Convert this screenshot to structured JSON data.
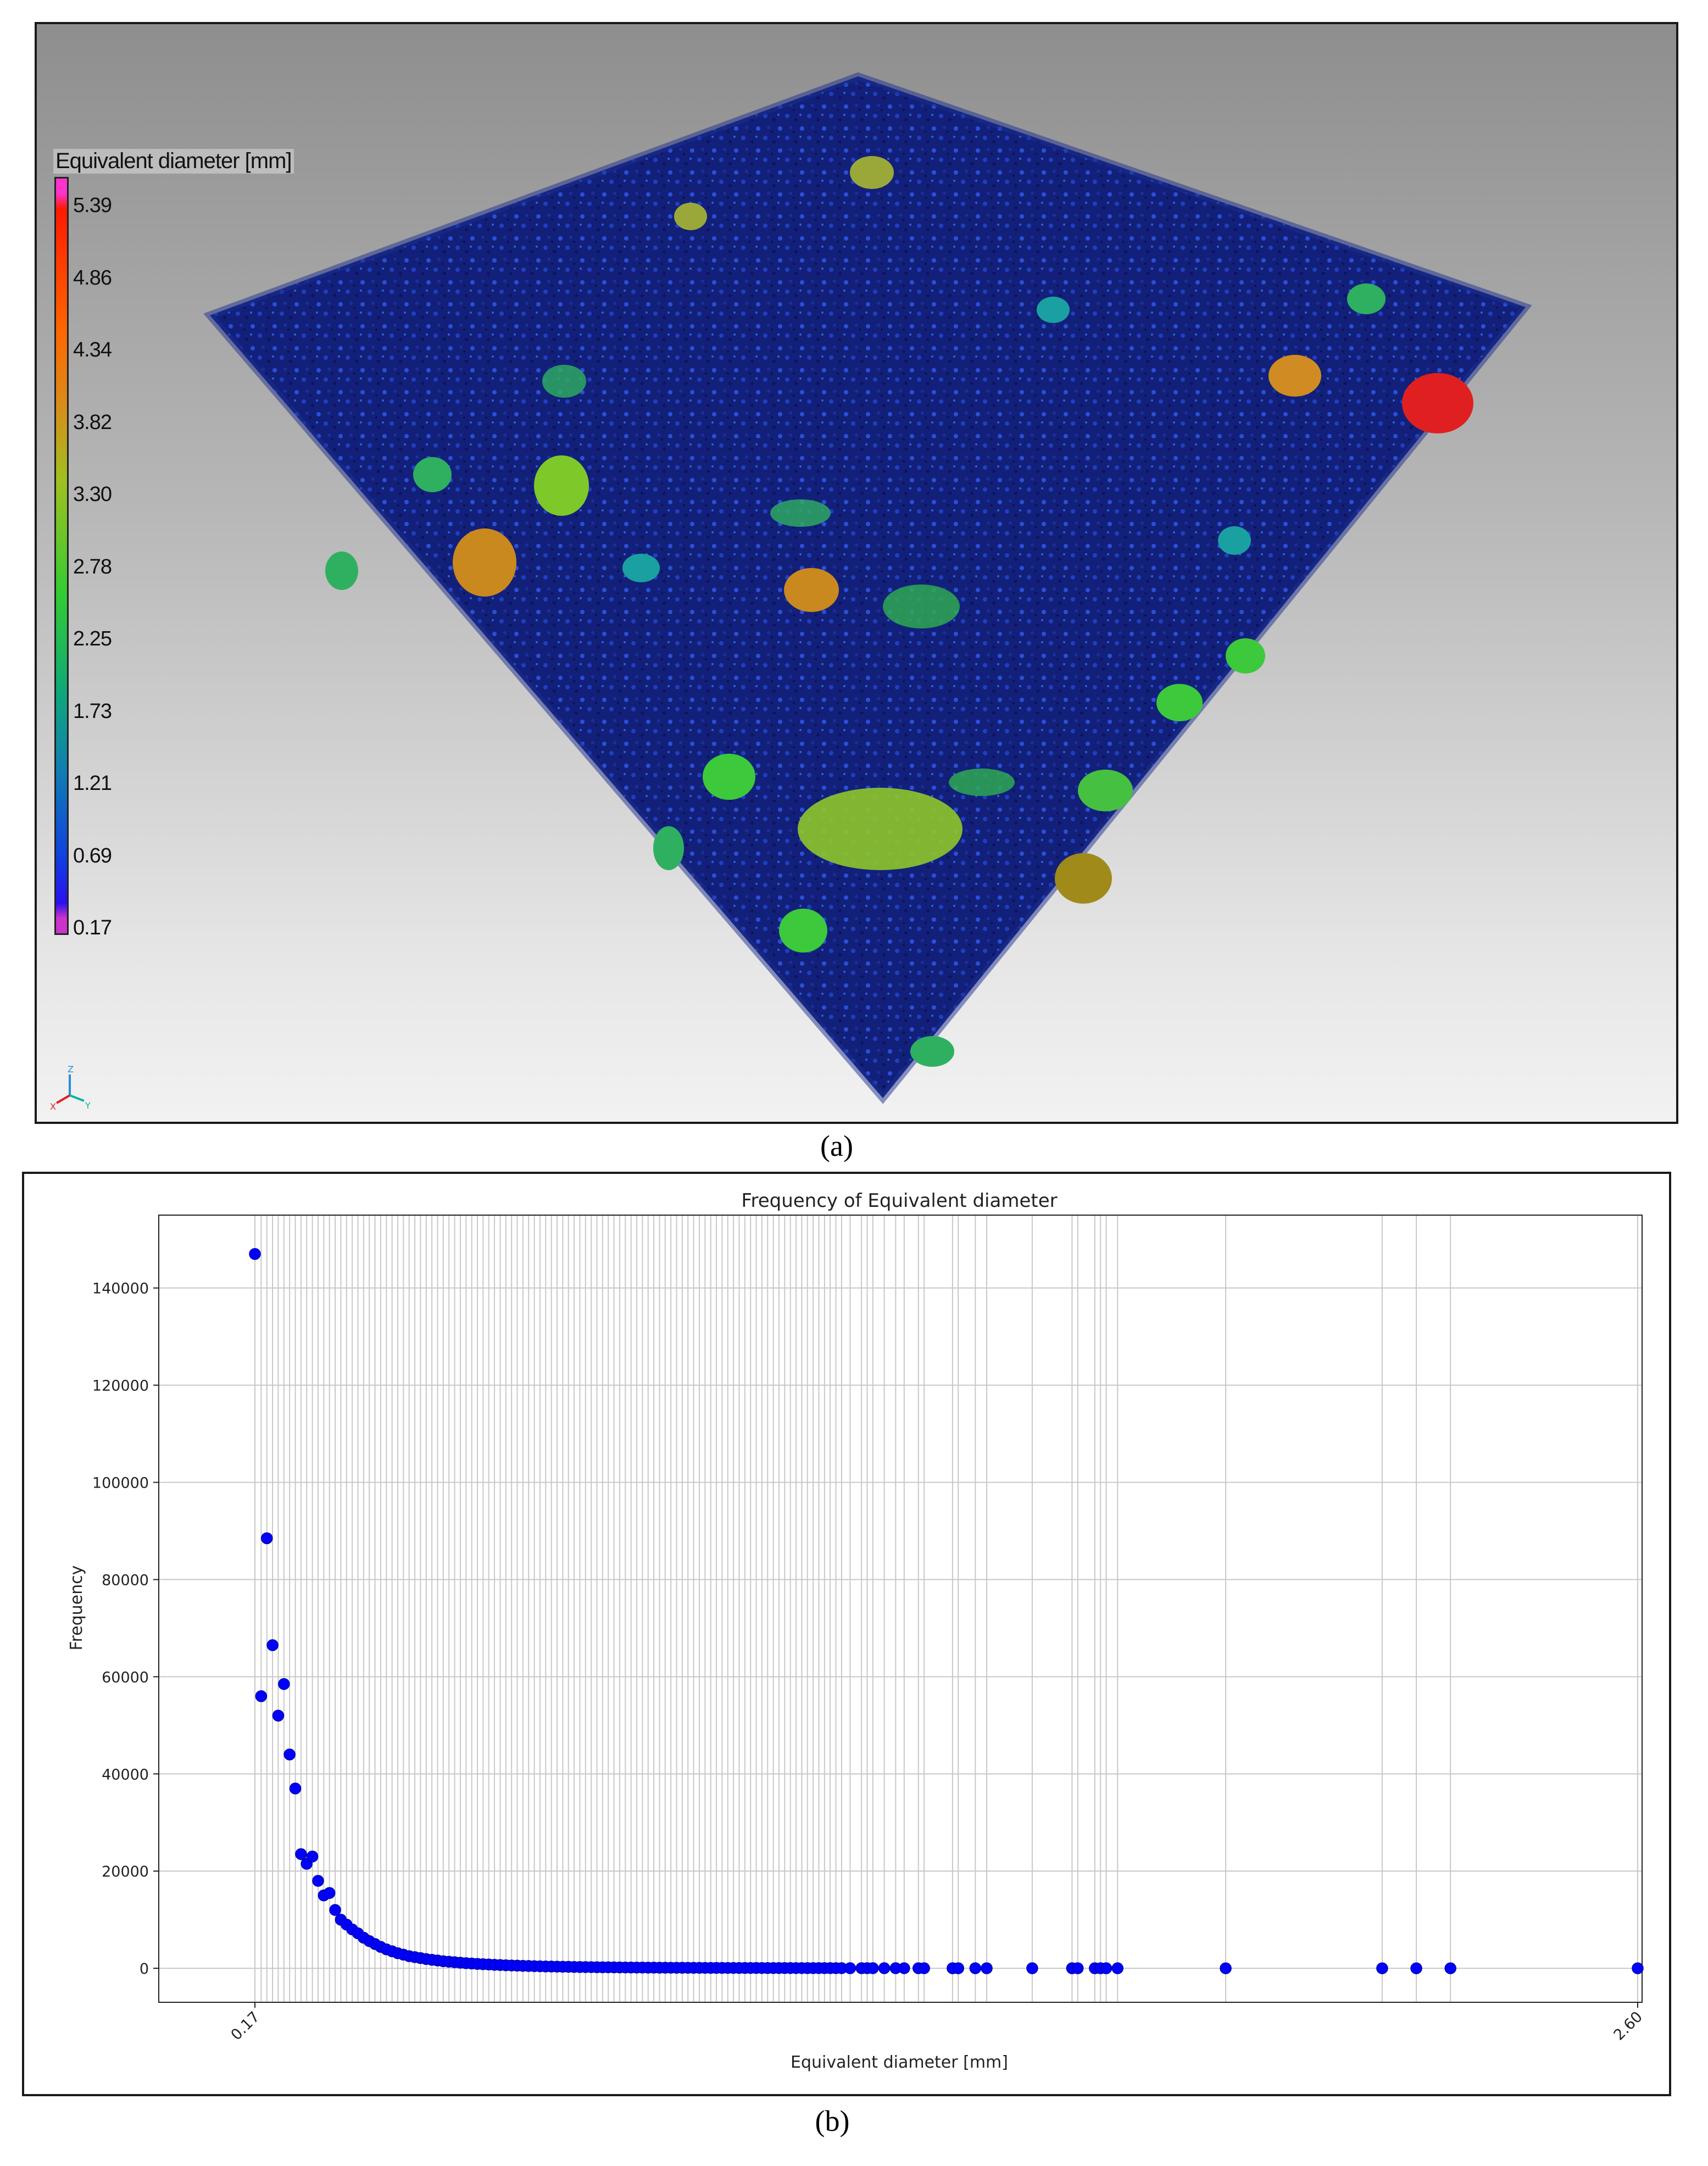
{
  "panel_a": {
    "caption": "(a)",
    "colorbar": {
      "title": "Equivalent diameter [mm]",
      "labels": [
        "5.39",
        "4.86",
        "4.34",
        "3.82",
        "3.30",
        "2.78",
        "2.25",
        "1.73",
        "1.21",
        "0.69",
        "0.17"
      ]
    },
    "triad_labels": {
      "z": "Z",
      "x": "X",
      "y": "Y"
    }
  },
  "panel_b": {
    "caption": "(b)"
  },
  "chart_data": {
    "type": "scatter",
    "title": "Frequency of Equivalent diameter",
    "xlabel": "Equivalent diameter [mm]",
    "ylabel": "Frequency",
    "x_tick_labels": [
      "0.17",
      "2.60"
    ],
    "x_range": [
      0.17,
      2.6
    ],
    "ylim": [
      -7000,
      155000
    ],
    "y_ticks": [
      0,
      20000,
      40000,
      60000,
      80000,
      100000,
      120000,
      140000
    ],
    "grid": true,
    "marker_color": "#0000ff",
    "series": [
      {
        "x": [
          0.17,
          0.181,
          0.191,
          0.201,
          0.211,
          0.221,
          0.231,
          0.241,
          0.251,
          0.261,
          0.271,
          0.281,
          0.291,
          0.301,
          0.311,
          0.321,
          0.331,
          0.341,
          0.351,
          0.361,
          0.371,
          0.381,
          0.391,
          0.401,
          0.411,
          0.421,
          0.431,
          0.441,
          0.451,
          0.461,
          0.471,
          0.481,
          0.491,
          0.501,
          0.511,
          0.521,
          0.531,
          0.541,
          0.551,
          0.561,
          0.571,
          0.581,
          0.591,
          0.601,
          0.611,
          0.621,
          0.631,
          0.641,
          0.651,
          0.661,
          0.671,
          0.681,
          0.691,
          0.701,
          0.711,
          0.721,
          0.731,
          0.741,
          0.751,
          0.761,
          0.771,
          0.781,
          0.791,
          0.801,
          0.811,
          0.821,
          0.831,
          0.841,
          0.851,
          0.861,
          0.871,
          0.881,
          0.891,
          0.901,
          0.911,
          0.921,
          0.931,
          0.941,
          0.951,
          0.961,
          0.971,
          0.981,
          0.991,
          1.001,
          1.011,
          1.021,
          1.031,
          1.041,
          1.051,
          1.061,
          1.071,
          1.081,
          1.091,
          1.101,
          1.111,
          1.121,
          1.131,
          1.141,
          1.151,
          1.161,
          1.171,
          1.181,
          1.191,
          1.201,
          1.216,
          1.236,
          1.246,
          1.256,
          1.276,
          1.296,
          1.311,
          1.336,
          1.346,
          1.396,
          1.406,
          1.436,
          1.456,
          1.536,
          1.606,
          1.616,
          1.646,
          1.656,
          1.666,
          1.686,
          1.876,
          2.151,
          2.211,
          2.271,
          2.6
        ],
        "y": [
          147000,
          56000,
          88500,
          66500,
          52000,
          58500,
          44000,
          37000,
          23500,
          21500,
          23000,
          18000,
          15000,
          15500,
          12000,
          10000,
          9000,
          8000,
          7200,
          6300,
          5600,
          5000,
          4400,
          3900,
          3500,
          3100,
          2800,
          2500,
          2300,
          2100,
          1900,
          1750,
          1600,
          1450,
          1350,
          1250,
          1150,
          1050,
          980,
          900,
          840,
          780,
          720,
          670,
          620,
          580,
          540,
          500,
          470,
          440,
          410,
          380,
          360,
          340,
          320,
          300,
          280,
          260,
          250,
          240,
          220,
          210,
          200,
          190,
          180,
          170,
          160,
          150,
          145,
          140,
          130,
          125,
          120,
          115,
          110,
          105,
          100,
          95,
          90,
          85,
          80,
          78,
          75,
          72,
          70,
          68,
          65,
          62,
          60,
          58,
          55,
          52,
          50,
          48,
          46,
          44,
          42,
          40,
          38,
          36,
          34,
          32,
          30,
          28,
          26,
          25,
          24,
          22,
          20,
          18,
          16,
          15,
          14,
          12,
          10,
          9,
          8,
          7,
          6,
          5,
          4,
          4,
          3,
          3,
          2,
          2,
          1,
          1,
          1
        ]
      }
    ]
  }
}
